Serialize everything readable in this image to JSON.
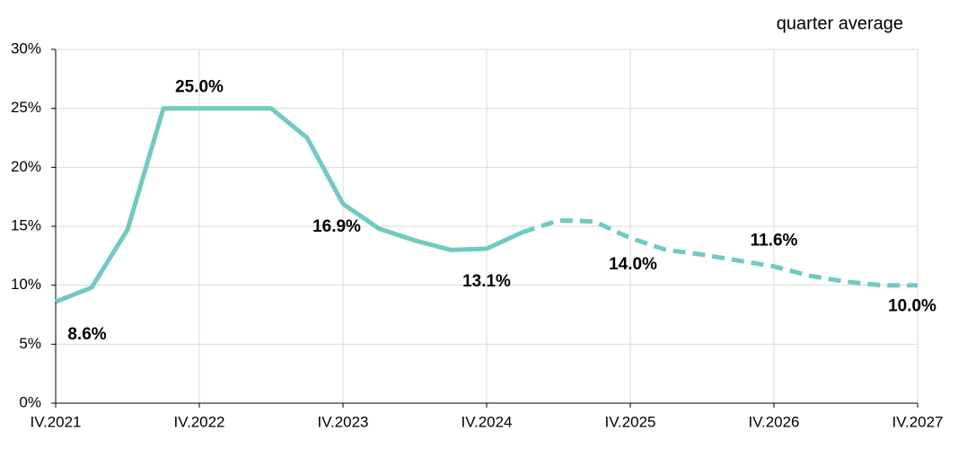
{
  "chart_data": {
    "type": "line",
    "subtitle": "quarter average",
    "categories": [
      "IV.2021",
      null,
      null,
      null,
      "IV.2022",
      null,
      null,
      null,
      "IV.2023",
      null,
      null,
      null,
      "IV.2024",
      null,
      null,
      null,
      "IV.2025",
      null,
      null,
      null,
      "IV.2026",
      null,
      null,
      null,
      "IV.2027"
    ],
    "series": [
      {
        "color": "#6fcac4",
        "dashed": false,
        "values": [
          8.6,
          9.8,
          14.7,
          25.0,
          25.0,
          25.0,
          25.0,
          22.5,
          16.9,
          14.8,
          13.8,
          13.0,
          13.1,
          14.5,
          null,
          null,
          null,
          null,
          null,
          null,
          null,
          null,
          null,
          null,
          null
        ],
        "value_labels": [
          "8.6%",
          null,
          null,
          null,
          "25.0%",
          null,
          null,
          null,
          "16.9%",
          null,
          null,
          null,
          "13.1%",
          null,
          null,
          null,
          null,
          null,
          null,
          null,
          null,
          null,
          null,
          null,
          null
        ]
      },
      {
        "color": "#6fcac4",
        "dashed": true,
        "values": [
          null,
          null,
          null,
          null,
          null,
          null,
          null,
          null,
          null,
          null,
          null,
          null,
          null,
          14.5,
          15.5,
          15.4,
          14.0,
          13.0,
          12.6,
          12.1,
          11.6,
          10.8,
          10.3,
          10.0,
          10.0
        ],
        "value_labels": [
          null,
          null,
          null,
          null,
          null,
          null,
          null,
          null,
          null,
          null,
          null,
          null,
          null,
          null,
          null,
          null,
          "14.0%",
          null,
          null,
          null,
          "11.6%",
          null,
          null,
          null,
          "10.0%"
        ]
      }
    ],
    "ylim": [
      0,
      30
    ],
    "yticks": [
      {
        "value": 0,
        "label": "0%"
      },
      {
        "value": 5,
        "label": "5%"
      },
      {
        "value": 10,
        "label": "10%"
      },
      {
        "value": 15,
        "label": "15%"
      },
      {
        "value": 20,
        "label": "20%"
      },
      {
        "value": 25,
        "label": "25%"
      },
      {
        "value": 30,
        "label": "30%"
      }
    ],
    "grid": true
  }
}
